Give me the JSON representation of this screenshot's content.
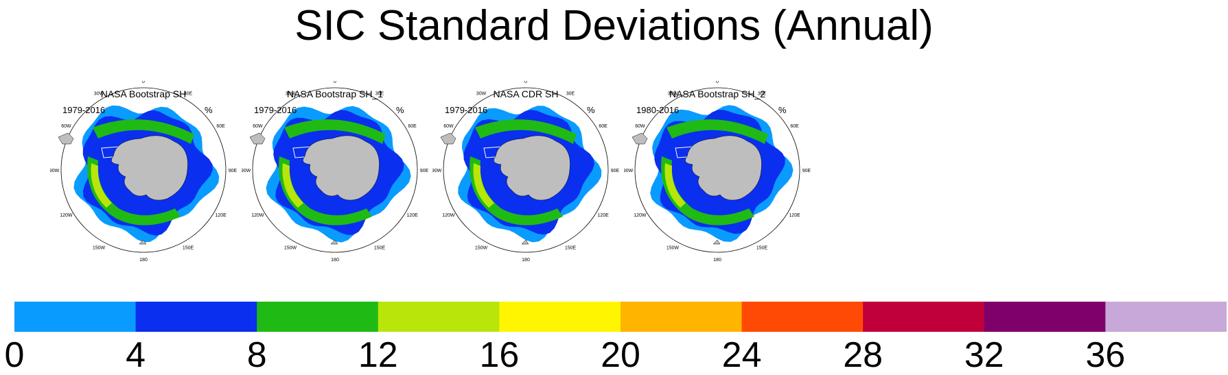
{
  "title": "SIC Standard Deviations (Annual)",
  "panels": [
    {
      "title": "NASA Bootstrap SH",
      "period": "1979-2016",
      "units": "%"
    },
    {
      "title": "NASA Bootstrap SH_1",
      "period": "1979-2016",
      "units": "%"
    },
    {
      "title": "NASA CDR SH",
      "period": "1979-2016",
      "units": "%"
    },
    {
      "title": "NASA Bootstrap SH_2",
      "period": "1980-2016",
      "units": "%"
    }
  ],
  "longitude_labels": [
    "0",
    "30E",
    "60E",
    "90E",
    "120E",
    "150E",
    "180",
    "150W",
    "120W",
    "90W",
    "60W",
    "30W"
  ],
  "colorbar": {
    "levels": [
      "0",
      "4",
      "8",
      "12",
      "16",
      "20",
      "24",
      "28",
      "32",
      "36"
    ],
    "colors": [
      "#0a9bff",
      "#0a2fef",
      "#20ba14",
      "#b8e60a",
      "#fff500",
      "#ffb400",
      "#ff4a05",
      "#c0003a",
      "#80006b",
      "#c8a8d8"
    ]
  },
  "map_colors": {
    "land": "#bebebe",
    "outer": "#0a9bff",
    "mid": "#0a2fef",
    "high": "#20ba14",
    "highest": "#b8e60a"
  }
}
